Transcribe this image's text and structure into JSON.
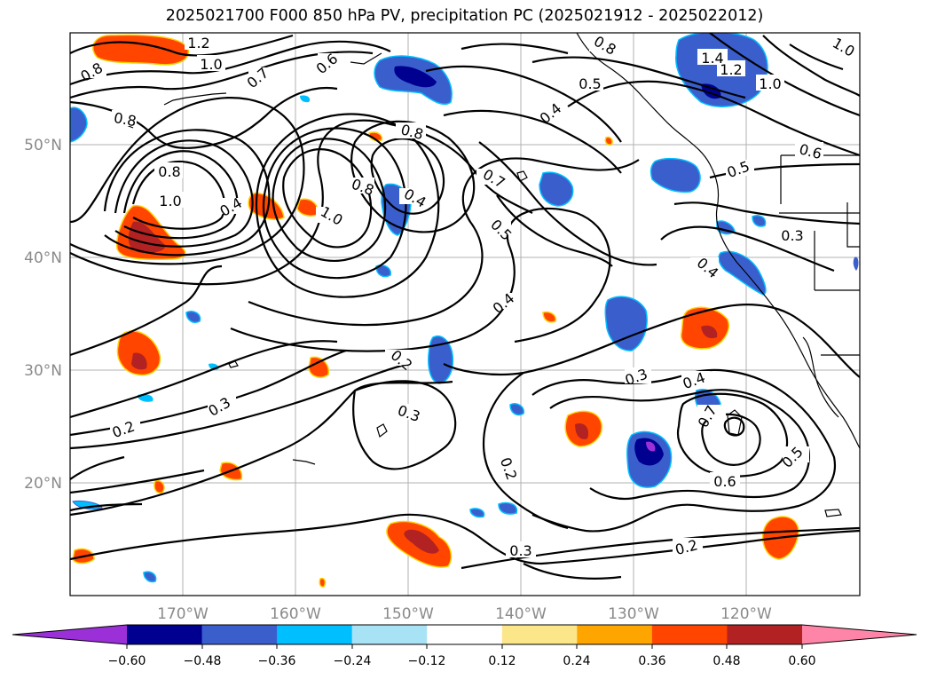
{
  "title": "2025021700 F000 850 hPa PV, precipitation PC (2025021912 - 2025022012)",
  "lat_labels": [
    "50°N",
    "40°N",
    "30°N",
    "20°N"
  ],
  "lon_labels": [
    "170°W",
    "160°W",
    "150°W",
    "140°W",
    "130°W",
    "120°W"
  ],
  "colorbar": {
    "tick_labels": [
      "−0.60",
      "−0.48",
      "−0.36",
      "−0.24",
      "−0.12",
      "0.12",
      "0.24",
      "0.36",
      "0.48",
      "0.60"
    ],
    "colors": [
      "#9b30d9",
      "#000090",
      "#3a5fcd",
      "#00bfff",
      "#a8e2f5",
      "#ffffff",
      "#fce68a",
      "#ffa500",
      "#ff4500",
      "#b22222",
      "#ff85a8"
    ]
  },
  "contour_labels": [
    "1.2",
    "1.0",
    "0.8",
    "0.7",
    "0.6",
    "0.5",
    "0.4",
    "0.3",
    "0.2",
    "1.4"
  ],
  "map": {
    "projection": "PlateCarree",
    "lon_range": [
      -180,
      -110
    ],
    "lat_range": [
      10,
      60
    ]
  }
}
